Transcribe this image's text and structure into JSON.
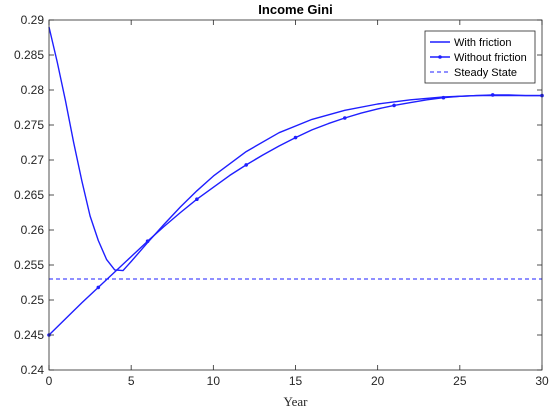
{
  "chart_data": {
    "type": "line",
    "title": "Income  Gini",
    "xlabel": "Year",
    "ylabel": "",
    "xlim": [
      0,
      30
    ],
    "ylim": [
      0.24,
      0.29
    ],
    "xticks": [
      0,
      5,
      10,
      15,
      20,
      25,
      30
    ],
    "yticks": [
      0.24,
      0.245,
      0.25,
      0.255,
      0.26,
      0.265,
      0.27,
      0.275,
      0.28,
      0.285,
      0.29
    ],
    "ytick_labels": [
      "0.24",
      "0.245",
      "0.25",
      "0.255",
      "0.26",
      "0.265",
      "0.27",
      "0.275",
      "0.28",
      "0.285",
      "0.29"
    ],
    "grid": false,
    "legend_position": "top-right",
    "series": [
      {
        "name": "With friction",
        "color": "#1f1fff",
        "style": "solid",
        "marker": "none",
        "x": [
          0,
          0.5,
          1,
          1.5,
          2,
          2.5,
          3,
          3.5,
          4,
          4.5,
          5,
          6,
          7,
          8,
          9,
          10,
          12,
          14,
          16,
          18,
          20,
          22,
          24,
          26,
          28,
          30
        ],
        "y": [
          0.289,
          0.284,
          0.2785,
          0.2725,
          0.267,
          0.262,
          0.2585,
          0.2558,
          0.2543,
          0.2542,
          0.2555,
          0.2582,
          0.2608,
          0.2633,
          0.2656,
          0.2677,
          0.2712,
          0.2739,
          0.2758,
          0.2771,
          0.278,
          0.2786,
          0.279,
          0.2792,
          0.2792,
          0.2792
        ]
      },
      {
        "name": "Without friction",
        "color": "#1f1fff",
        "style": "solid",
        "marker": "dot",
        "marker_every": 3,
        "x": [
          0,
          1,
          2,
          3,
          4,
          5,
          6,
          7,
          8,
          9,
          10,
          11,
          12,
          13,
          14,
          15,
          16,
          17,
          18,
          19,
          20,
          21,
          22,
          23,
          24,
          25,
          26,
          27,
          28,
          29,
          30
        ],
        "y": [
          0.245,
          0.2473,
          0.2496,
          0.2518,
          0.254,
          0.2562,
          0.2584,
          0.2605,
          0.2625,
          0.2644,
          0.2661,
          0.2678,
          0.2693,
          0.2707,
          0.272,
          0.2732,
          0.2743,
          0.2752,
          0.276,
          0.2767,
          0.2773,
          0.2778,
          0.2782,
          0.2786,
          0.2789,
          0.2791,
          0.2792,
          0.2793,
          0.2793,
          0.2792,
          0.2792
        ]
      },
      {
        "name": "Steady State",
        "color": "#1f1fff",
        "style": "dashed",
        "marker": "none",
        "x": [
          0,
          30
        ],
        "y": [
          0.253,
          0.253
        ]
      }
    ]
  }
}
